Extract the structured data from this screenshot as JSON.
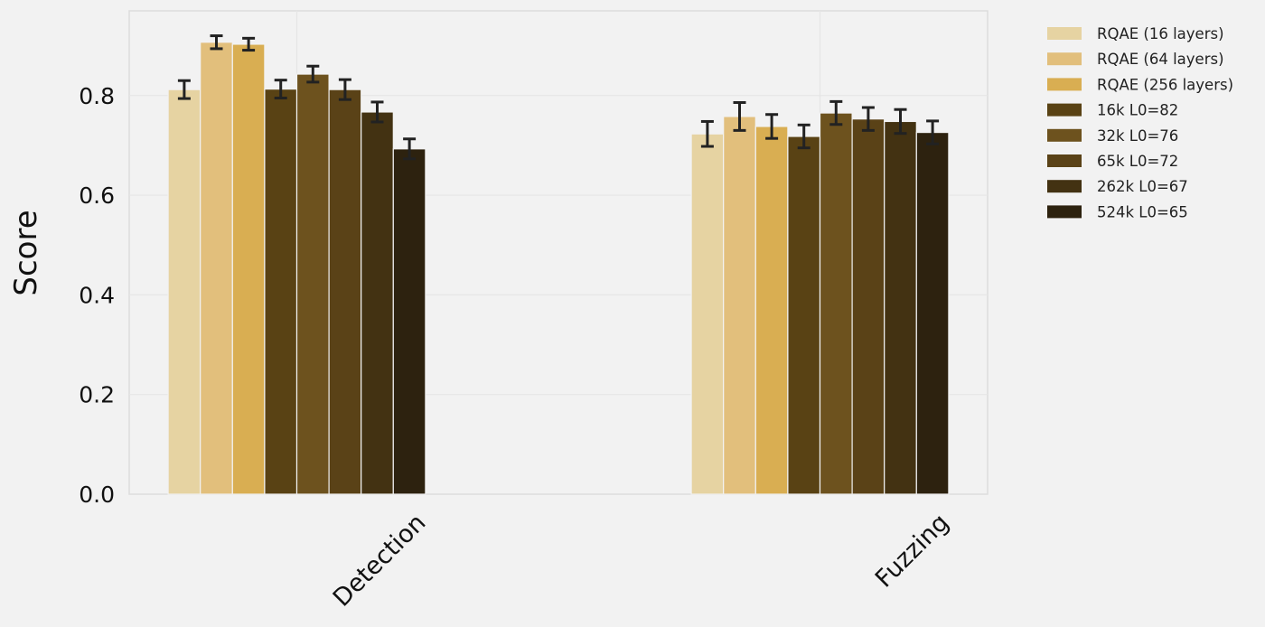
{
  "chart_data": {
    "type": "bar",
    "title": "",
    "xlabel": "",
    "ylabel": "Score",
    "ylim": [
      0,
      0.97
    ],
    "yticks": [
      "0.0",
      "0.2",
      "0.4",
      "0.6",
      "0.8"
    ],
    "ytick_values": [
      0,
      0.2,
      0.4,
      0.6,
      0.8
    ],
    "categories": [
      "Detection",
      "Fuzzing"
    ],
    "grid": true,
    "legend_position": "outside-right",
    "error_bars": true,
    "series": [
      {
        "name": "RQAE (16 layers)",
        "color": "#e6d3a2",
        "values": [
          0.812,
          0.723
        ],
        "errors": [
          0.018,
          0.025
        ]
      },
      {
        "name": "RQAE (64 layers)",
        "color": "#e2bf7c",
        "values": [
          0.907,
          0.758
        ],
        "errors": [
          0.013,
          0.028
        ]
      },
      {
        "name": "RQAE (256 layers)",
        "color": "#d9ae52",
        "values": [
          0.903,
          0.738
        ],
        "errors": [
          0.012,
          0.024
        ]
      },
      {
        "name": "16k L0=82",
        "color": "#594214",
        "values": [
          0.813,
          0.718
        ],
        "errors": [
          0.018,
          0.023
        ]
      },
      {
        "name": "32k L0=76",
        "color": "#6d521e",
        "values": [
          0.843,
          0.765
        ],
        "errors": [
          0.016,
          0.023
        ]
      },
      {
        "name": "65k L0=72",
        "color": "#5a4217",
        "values": [
          0.812,
          0.753
        ],
        "errors": [
          0.02,
          0.023
        ]
      },
      {
        "name": "262k L0=67",
        "color": "#433212",
        "values": [
          0.767,
          0.748
        ],
        "errors": [
          0.02,
          0.024
        ]
      },
      {
        "name": "524k L0=65",
        "color": "#2d220f",
        "values": [
          0.693,
          0.726
        ],
        "errors": [
          0.02,
          0.023
        ]
      }
    ]
  }
}
